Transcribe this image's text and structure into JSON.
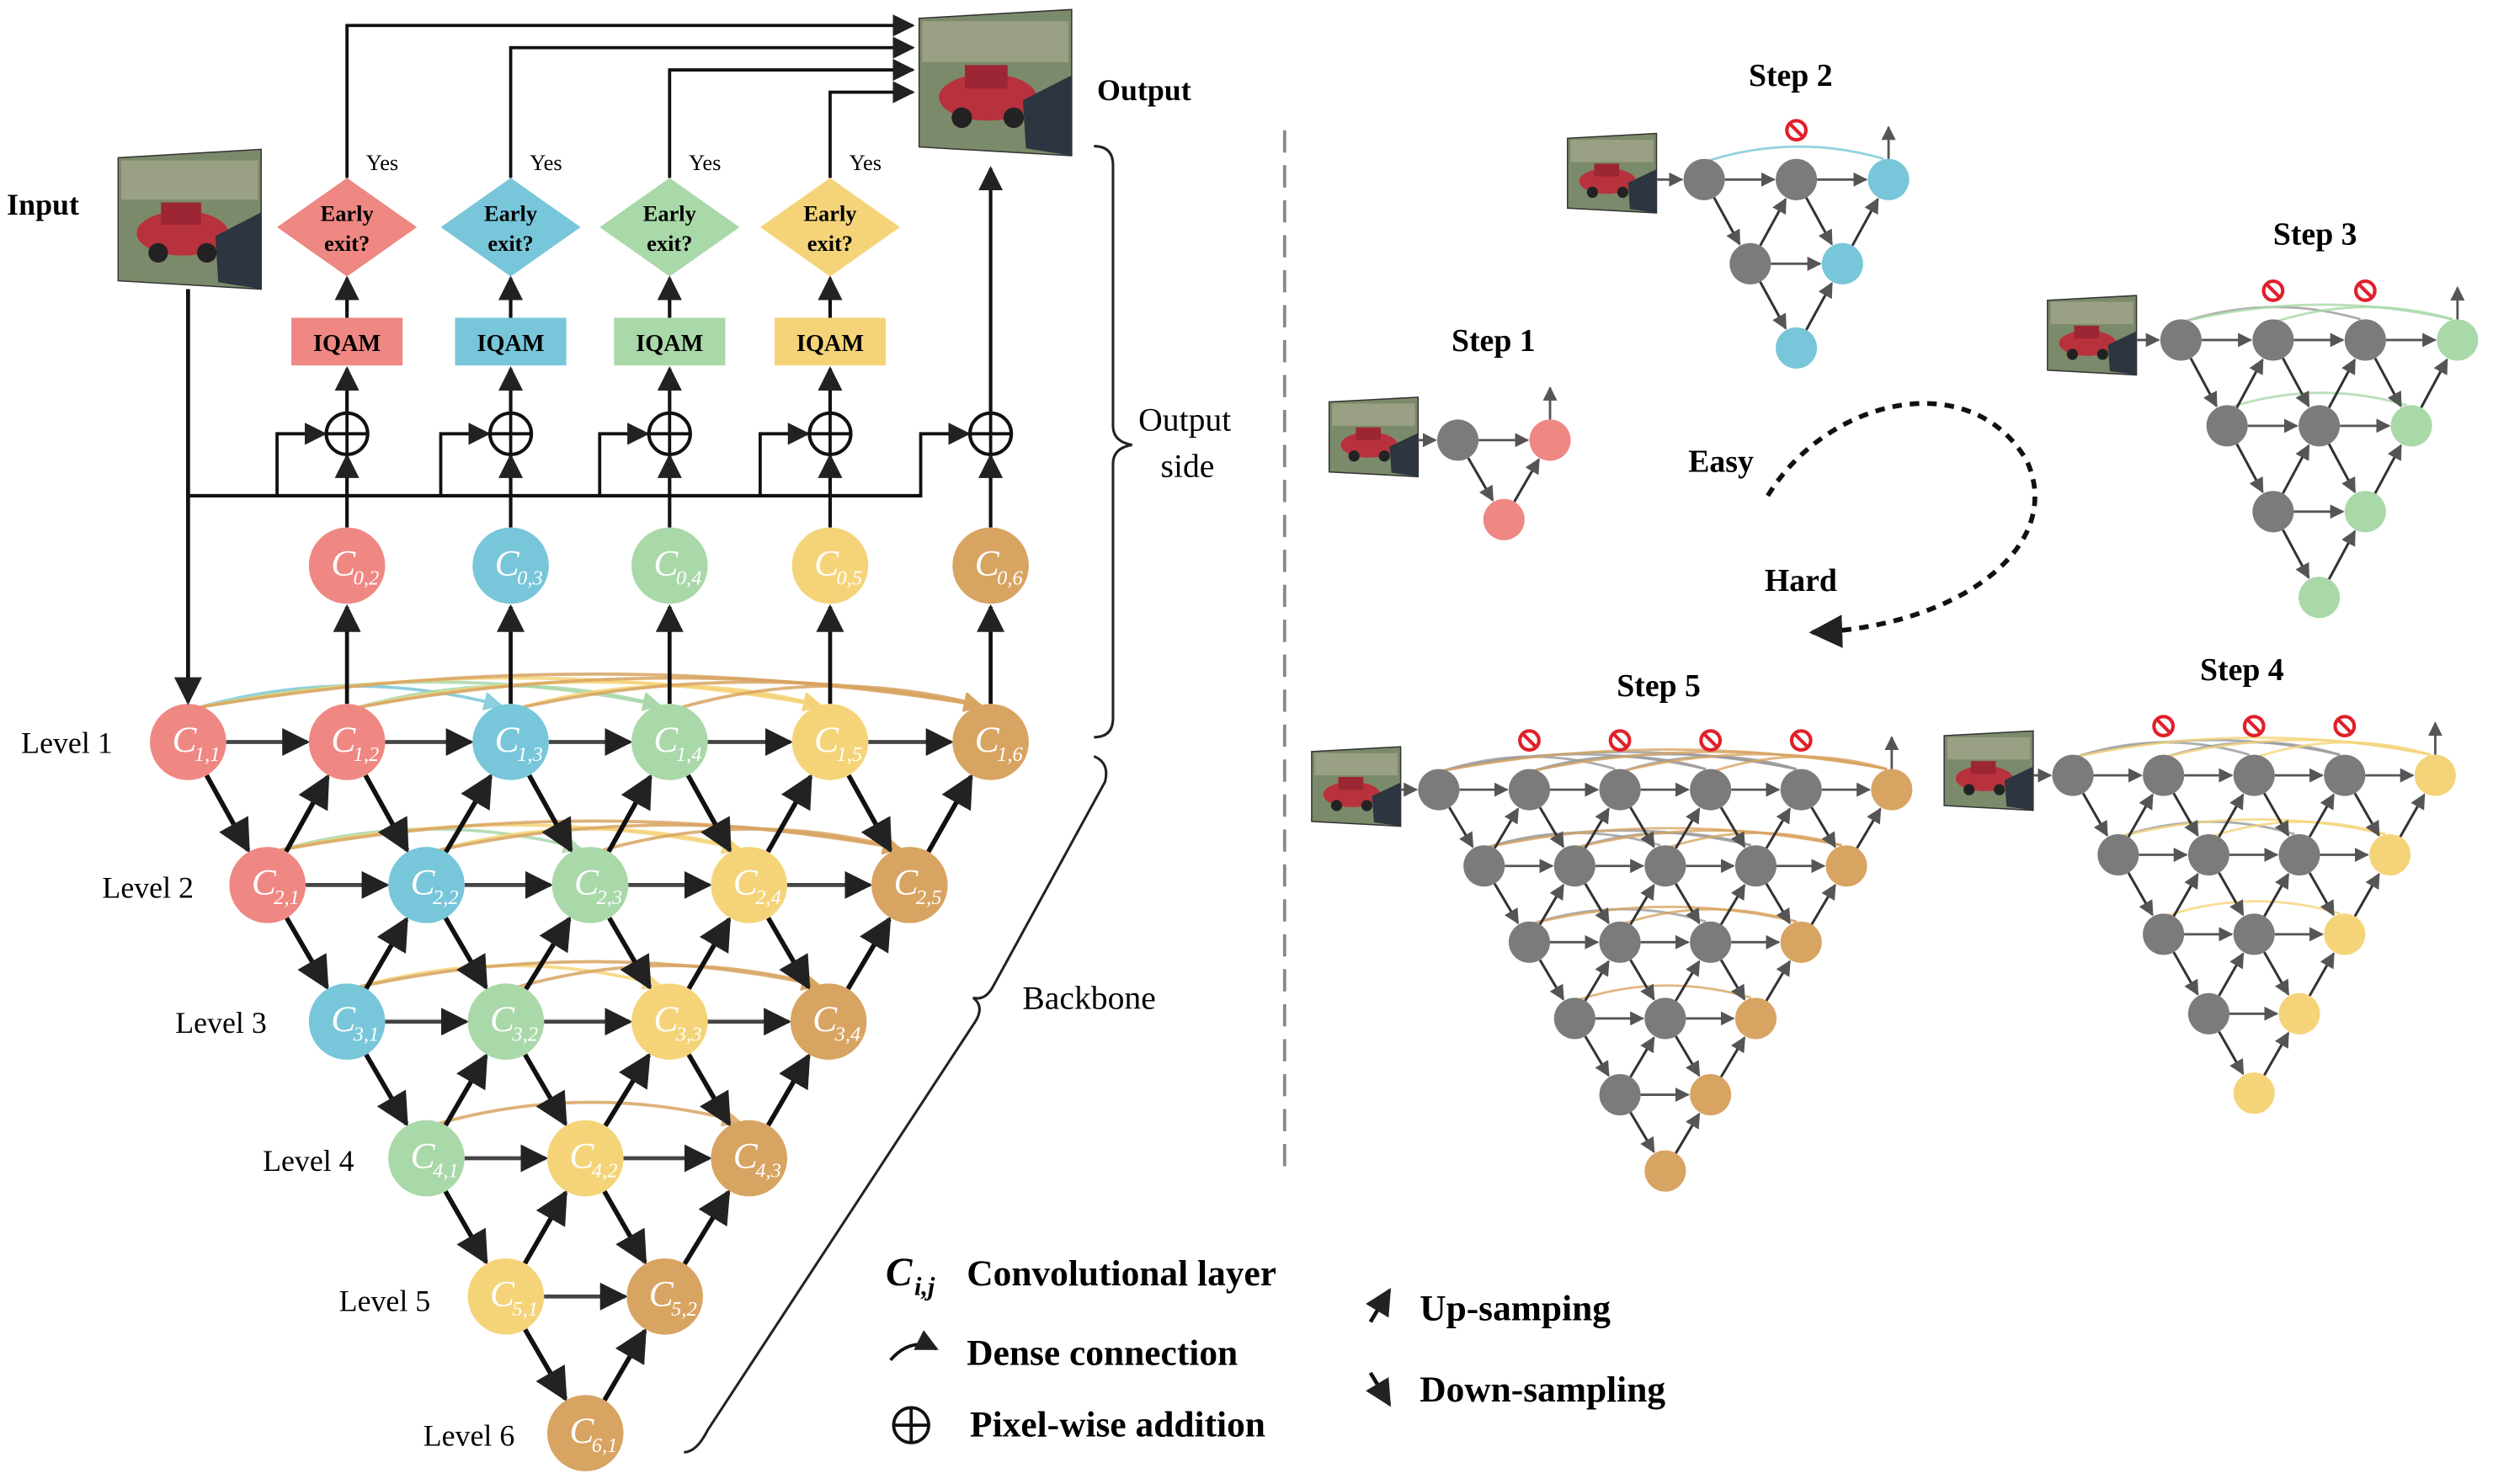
{
  "labels": {
    "input": "Input",
    "output": "Output",
    "output_side": [
      "Output",
      "side"
    ],
    "backbone": "Backbone",
    "yes": "Yes",
    "early_exit": [
      "Early",
      "exit?"
    ],
    "iqam": "IQAM",
    "easy": "Easy",
    "hard": "Hard"
  },
  "levels": [
    "Level 1",
    "Level 2",
    "Level 3",
    "Level 4",
    "Level 5",
    "Level 6"
  ],
  "steps": [
    "Step 1",
    "Step 2",
    "Step 3",
    "Step 4",
    "Step 5"
  ],
  "colors": {
    "red": "#EF8783",
    "blue": "#78C6D9",
    "green": "#A9D8A9",
    "yellow": "#F5D479",
    "brown": "#D8A462",
    "gray": "#7B7B7B",
    "stop": "#E0202A"
  },
  "legend": {
    "conv_symbol_main": "C",
    "conv_symbol_sub": "i,j",
    "conv_label": "Convolutional layer",
    "dense_label": "Dense connection",
    "add_label": "Pixel-wise addition",
    "up_label": "Up-samping",
    "down_label": "Down-sampling"
  },
  "nodes": {
    "out": [
      {
        "i": "0",
        "j": "2",
        "color": "red"
      },
      {
        "i": "0",
        "j": "3",
        "color": "blue"
      },
      {
        "i": "0",
        "j": "4",
        "color": "green"
      },
      {
        "i": "0",
        "j": "5",
        "color": "yellow"
      },
      {
        "i": "0",
        "j": "6",
        "color": "brown"
      }
    ],
    "grid": [
      [
        {
          "i": "1",
          "j": "1",
          "color": "red"
        },
        {
          "i": "1",
          "j": "2",
          "color": "red"
        },
        {
          "i": "1",
          "j": "3",
          "color": "blue"
        },
        {
          "i": "1",
          "j": "4",
          "color": "green"
        },
        {
          "i": "1",
          "j": "5",
          "color": "yellow"
        },
        {
          "i": "1",
          "j": "6",
          "color": "brown"
        }
      ],
      [
        {
          "i": "2",
          "j": "1",
          "color": "red"
        },
        {
          "i": "2",
          "j": "2",
          "color": "blue"
        },
        {
          "i": "2",
          "j": "3",
          "color": "green"
        },
        {
          "i": "2",
          "j": "4",
          "color": "yellow"
        },
        {
          "i": "2",
          "j": "5",
          "color": "brown"
        }
      ],
      [
        {
          "i": "3",
          "j": "1",
          "color": "blue"
        },
        {
          "i": "3",
          "j": "2",
          "color": "green"
        },
        {
          "i": "3",
          "j": "3",
          "color": "yellow"
        },
        {
          "i": "3",
          "j": "4",
          "color": "brown"
        }
      ],
      [
        {
          "i": "4",
          "j": "1",
          "color": "green"
        },
        {
          "i": "4",
          "j": "2",
          "color": "yellow"
        },
        {
          "i": "4",
          "j": "3",
          "color": "brown"
        }
      ],
      [
        {
          "i": "5",
          "j": "1",
          "color": "yellow"
        },
        {
          "i": "5",
          "j": "2",
          "color": "brown"
        }
      ],
      [
        {
          "i": "6",
          "j": "1",
          "color": "brown"
        }
      ]
    ]
  },
  "branches": [
    {
      "color": "red"
    },
    {
      "color": "blue"
    },
    {
      "color": "green"
    },
    {
      "color": "yellow"
    }
  ]
}
